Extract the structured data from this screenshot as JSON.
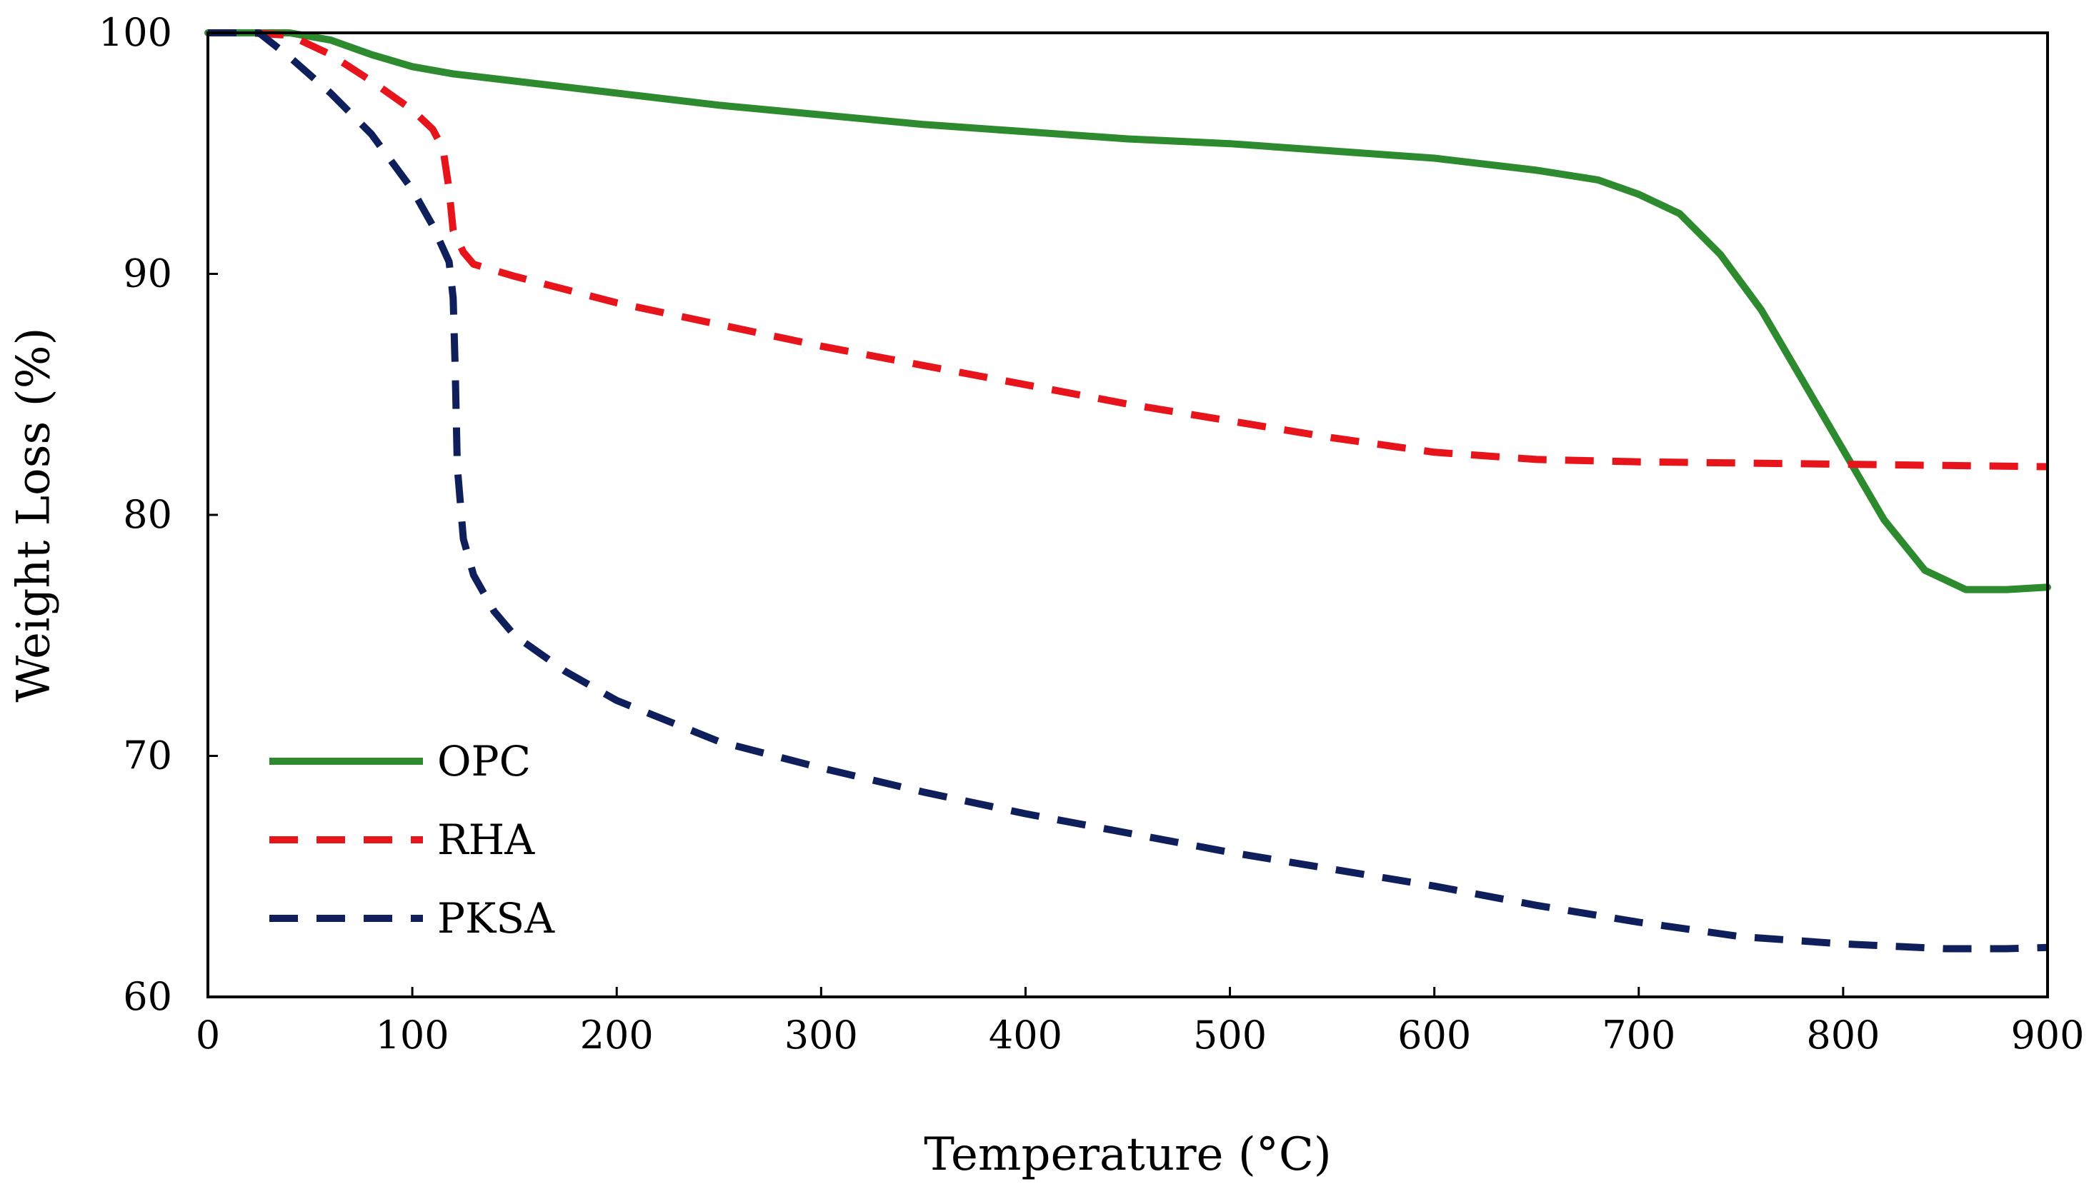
{
  "chart_data": {
    "type": "line",
    "title": "",
    "xlabel": "Temperature (°C)",
    "ylabel": "Weight Loss (%)",
    "xlim": [
      0,
      900
    ],
    "ylim": [
      60,
      100
    ],
    "xticks": [
      0,
      100,
      200,
      300,
      400,
      500,
      600,
      700,
      800,
      900
    ],
    "yticks": [
      60,
      70,
      80,
      90,
      100
    ],
    "grid": false,
    "legend_position": "bottom-left",
    "series": [
      {
        "name": "OPC",
        "color": "#2e8a2e",
        "style": "solid",
        "points": [
          [
            0,
            100
          ],
          [
            20,
            100
          ],
          [
            40,
            100
          ],
          [
            60,
            99.7
          ],
          [
            80,
            99.1
          ],
          [
            100,
            98.6
          ],
          [
            120,
            98.3
          ],
          [
            150,
            98.0
          ],
          [
            200,
            97.5
          ],
          [
            250,
            97.0
          ],
          [
            300,
            96.6
          ],
          [
            350,
            96.2
          ],
          [
            400,
            95.9
          ],
          [
            450,
            95.6
          ],
          [
            500,
            95.4
          ],
          [
            550,
            95.1
          ],
          [
            600,
            94.8
          ],
          [
            650,
            94.3
          ],
          [
            680,
            93.9
          ],
          [
            700,
            93.3
          ],
          [
            720,
            92.5
          ],
          [
            740,
            90.8
          ],
          [
            760,
            88.5
          ],
          [
            780,
            85.6
          ],
          [
            800,
            82.7
          ],
          [
            820,
            79.8
          ],
          [
            840,
            77.7
          ],
          [
            860,
            76.9
          ],
          [
            880,
            76.9
          ],
          [
            900,
            77.0
          ]
        ]
      },
      {
        "name": "RHA",
        "color": "#e8141b",
        "style": "dashed",
        "points": [
          [
            0,
            100
          ],
          [
            20,
            100
          ],
          [
            40,
            99.9
          ],
          [
            60,
            99.1
          ],
          [
            80,
            98.0
          ],
          [
            100,
            96.8
          ],
          [
            110,
            96.0
          ],
          [
            115,
            95.2
          ],
          [
            118,
            93.5
          ],
          [
            120,
            91.8
          ],
          [
            125,
            90.9
          ],
          [
            130,
            90.4
          ],
          [
            150,
            89.9
          ],
          [
            200,
            88.8
          ],
          [
            250,
            87.9
          ],
          [
            300,
            87.0
          ],
          [
            350,
            86.2
          ],
          [
            400,
            85.4
          ],
          [
            450,
            84.6
          ],
          [
            500,
            83.9
          ],
          [
            550,
            83.2
          ],
          [
            600,
            82.6
          ],
          [
            650,
            82.3
          ],
          [
            700,
            82.2
          ],
          [
            750,
            82.15
          ],
          [
            800,
            82.1
          ],
          [
            850,
            82.05
          ],
          [
            900,
            82.0
          ]
        ]
      },
      {
        "name": "PKSA",
        "color": "#0e1f5b",
        "style": "dashed",
        "points": [
          [
            0,
            100
          ],
          [
            25,
            100
          ],
          [
            40,
            99.0
          ],
          [
            60,
            97.5
          ],
          [
            80,
            95.8
          ],
          [
            100,
            93.5
          ],
          [
            110,
            92.0
          ],
          [
            118,
            90.5
          ],
          [
            120,
            89.0
          ],
          [
            121,
            86.0
          ],
          [
            122,
            82.0
          ],
          [
            125,
            79.0
          ],
          [
            130,
            77.5
          ],
          [
            140,
            76.0
          ],
          [
            150,
            75.0
          ],
          [
            175,
            73.5
          ],
          [
            200,
            72.3
          ],
          [
            250,
            70.6
          ],
          [
            300,
            69.5
          ],
          [
            350,
            68.5
          ],
          [
            400,
            67.6
          ],
          [
            450,
            66.8
          ],
          [
            500,
            66.0
          ],
          [
            550,
            65.3
          ],
          [
            600,
            64.6
          ],
          [
            650,
            63.8
          ],
          [
            700,
            63.1
          ],
          [
            750,
            62.5
          ],
          [
            800,
            62.2
          ],
          [
            850,
            62.0
          ],
          [
            880,
            62.0
          ],
          [
            900,
            62.05
          ]
        ]
      }
    ]
  }
}
